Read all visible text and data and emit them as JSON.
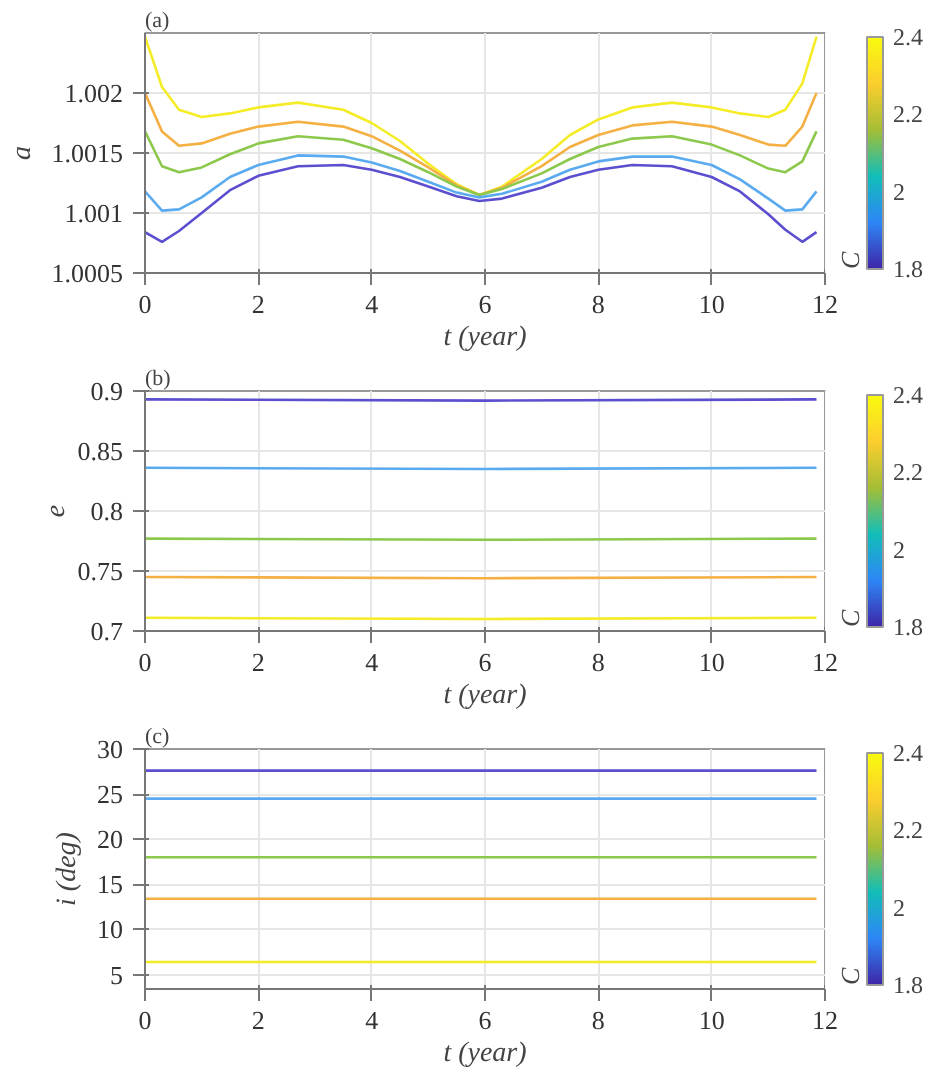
{
  "chart_data": [
    {
      "type": "line",
      "title": "(a)",
      "xlabel": "t (year)",
      "ylabel": "a",
      "clabel": "C",
      "clim": [
        1.8,
        2.4
      ],
      "cticks": [
        1.8,
        2,
        2.2,
        2.4
      ],
      "xlim": [
        0,
        12
      ],
      "ylim": [
        1.0005,
        1.0025
      ],
      "xticks": [
        0,
        2,
        4,
        6,
        8,
        10,
        12
      ],
      "yticks": [
        1.0005,
        1.001,
        1.0015,
        1.002
      ],
      "grid": true,
      "line_style": "solid",
      "x": [
        0,
        0.3,
        0.6,
        1,
        1.5,
        2,
        2.7,
        3.5,
        4,
        4.5,
        5,
        5.5,
        5.9,
        6.3,
        7,
        7.5,
        8,
        8.6,
        9.3,
        10,
        10.5,
        11,
        11.3,
        11.6,
        11.85
      ],
      "series": [
        {
          "color": "#f5ec28",
          "values": [
            1.00247,
            1.00205,
            1.00186,
            1.0018,
            1.00183,
            1.00188,
            1.00192,
            1.00186,
            1.00175,
            1.0016,
            1.00141,
            1.00124,
            1.00115,
            1.00122,
            1.00145,
            1.00165,
            1.00178,
            1.00188,
            1.00192,
            1.00188,
            1.00183,
            1.0018,
            1.00186,
            1.00208,
            1.00247
          ]
        },
        {
          "color": "#f5b043",
          "values": [
            1.002,
            1.00168,
            1.00156,
            1.00158,
            1.00166,
            1.00172,
            1.00176,
            1.00172,
            1.00164,
            1.00152,
            1.00138,
            1.00123,
            1.00115,
            1.00121,
            1.00139,
            1.00155,
            1.00165,
            1.00173,
            1.00176,
            1.00172,
            1.00165,
            1.00157,
            1.00156,
            1.00172,
            1.002
          ]
        },
        {
          "color": "#8cc84b",
          "values": [
            1.00168,
            1.00139,
            1.00134,
            1.00138,
            1.00149,
            1.00158,
            1.00164,
            1.00161,
            1.00154,
            1.00145,
            1.00134,
            1.00122,
            1.00115,
            1.0012,
            1.00133,
            1.00145,
            1.00155,
            1.00162,
            1.00164,
            1.00157,
            1.00148,
            1.00137,
            1.00134,
            1.00143,
            1.00168
          ]
        },
        {
          "color": "#5aaaf0",
          "values": [
            1.00118,
            1.00102,
            1.00103,
            1.00113,
            1.0013,
            1.0014,
            1.00148,
            1.00147,
            1.00142,
            1.00135,
            1.00126,
            1.00117,
            1.00113,
            1.00116,
            1.00126,
            1.00136,
            1.00143,
            1.00147,
            1.00147,
            1.0014,
            1.00128,
            1.00112,
            1.00102,
            1.00103,
            1.00118
          ]
        },
        {
          "color": "#5b4fcf",
          "values": [
            1.00084,
            1.00076,
            1.00085,
            1.001,
            1.00119,
            1.00131,
            1.00139,
            1.0014,
            1.00136,
            1.0013,
            1.00122,
            1.00114,
            1.0011,
            1.00112,
            1.00121,
            1.0013,
            1.00136,
            1.0014,
            1.00139,
            1.0013,
            1.00118,
            1.00099,
            1.00086,
            1.00076,
            1.00084
          ]
        }
      ]
    },
    {
      "type": "line",
      "title": "(b)",
      "xlabel": "t (year)",
      "ylabel": "e",
      "clabel": "C",
      "clim": [
        1.8,
        2.4
      ],
      "cticks": [
        1.8,
        2,
        2.2,
        2.4
      ],
      "xlim": [
        0,
        12
      ],
      "ylim": [
        0.7,
        0.9
      ],
      "xticks": [
        0,
        2,
        4,
        6,
        8,
        10,
        12
      ],
      "yticks": [
        0.7,
        0.75,
        0.8,
        0.85,
        0.9
      ],
      "grid": true,
      "line_style": "solid",
      "x": [
        0,
        6,
        11.85
      ],
      "series": [
        {
          "color": "#5b4fcf",
          "values": [
            0.893,
            0.892,
            0.893
          ]
        },
        {
          "color": "#5aaaf0",
          "values": [
            0.836,
            0.835,
            0.836
          ]
        },
        {
          "color": "#8cc84b",
          "values": [
            0.777,
            0.776,
            0.777
          ]
        },
        {
          "color": "#f5b043",
          "values": [
            0.745,
            0.744,
            0.745
          ]
        },
        {
          "color": "#f5ec28",
          "values": [
            0.711,
            0.71,
            0.711
          ]
        }
      ]
    },
    {
      "type": "line",
      "title": "(c)",
      "xlabel": "t (year)",
      "ylabel": "i (deg)",
      "clabel": "C",
      "clim": [
        1.8,
        2.4
      ],
      "cticks": [
        1.8,
        2,
        2.2,
        2.4
      ],
      "xlim": [
        0,
        12
      ],
      "ylim": [
        3.4,
        30
      ],
      "xticks": [
        0,
        2,
        4,
        6,
        8,
        10,
        12
      ],
      "yticks": [
        5,
        10,
        15,
        20,
        25,
        30
      ],
      "grid": true,
      "line_style": "solid",
      "x": [
        0,
        11.85
      ],
      "series": [
        {
          "color": "#5b4fcf",
          "values": [
            27.6,
            27.6
          ]
        },
        {
          "color": "#5aaaf0",
          "values": [
            24.5,
            24.5
          ]
        },
        {
          "color": "#8cc84b",
          "values": [
            18.0,
            18.0
          ]
        },
        {
          "color": "#f5b043",
          "values": [
            13.4,
            13.4
          ]
        },
        {
          "color": "#f5ec28",
          "values": [
            6.4,
            6.4
          ]
        }
      ]
    }
  ]
}
